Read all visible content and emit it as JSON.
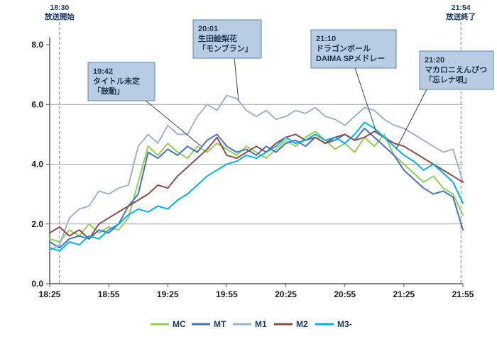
{
  "chart_data": {
    "type": "line",
    "x_axis_start": "18:25",
    "x_axis_end": "21:55",
    "x_ticks": [
      "18:25",
      "18:55",
      "19:25",
      "19:55",
      "20:25",
      "20:55",
      "21:25",
      "21:55"
    ],
    "x_tick_interval_minutes": 30,
    "y_ticks": [
      "0.0",
      "2.0",
      "4.0",
      "6.0",
      "8.0"
    ],
    "ylim": [
      0,
      8
    ],
    "grid_values": [
      2,
      4,
      6
    ],
    "grid": true,
    "legend_position": "bottom",
    "sample_interval_minutes": 5,
    "markers": [
      {
        "time": "18:30",
        "label": "放送開始"
      },
      {
        "time": "21:54",
        "label": "放送終了"
      }
    ],
    "annotations": [
      {
        "time": "19:42",
        "lines": [
          "19:42",
          "タイトル未定",
          "「鼓動」"
        ]
      },
      {
        "time": "20:01",
        "lines": [
          "20:01",
          "生田絵梨花",
          "「モンブラン」"
        ]
      },
      {
        "time": "21:10",
        "lines": [
          "21:10",
          "ドラゴンボール",
          "DAIMA SPメドレー"
        ]
      },
      {
        "time": "21:20",
        "lines": [
          "21:20",
          "マカロニえんぴつ",
          "「忘レナ唄」"
        ]
      }
    ],
    "series": [
      {
        "name": "MC",
        "color": "#92d050",
        "values": [
          1.5,
          1.4,
          1.8,
          1.6,
          2.0,
          1.7,
          1.9,
          1.8,
          2.2,
          3.4,
          4.6,
          4.3,
          4.7,
          4.4,
          4.2,
          4.6,
          4.4,
          4.7,
          4.5,
          4.3,
          4.6,
          4.4,
          4.2,
          4.5,
          4.8,
          4.6,
          4.9,
          5.1,
          4.8,
          4.5,
          4.7,
          4.4,
          4.9,
          4.6,
          5.0,
          4.3,
          4.0,
          3.7,
          3.4,
          3.6,
          3.2,
          3.0,
          2.3
        ]
      },
      {
        "name": "MT",
        "color": "#4472c4",
        "values": [
          1.4,
          1.2,
          1.5,
          1.6,
          1.5,
          1.8,
          1.7,
          2.0,
          2.6,
          3.0,
          4.4,
          4.2,
          4.5,
          4.3,
          4.6,
          4.4,
          4.8,
          5.0,
          4.6,
          4.4,
          4.5,
          4.3,
          4.6,
          4.4,
          4.7,
          4.8,
          4.6,
          4.9,
          4.7,
          4.8,
          5.0,
          4.8,
          5.2,
          4.9,
          4.6,
          4.3,
          3.8,
          3.5,
          3.2,
          3.0,
          3.1,
          2.9,
          1.8
        ]
      },
      {
        "name": "M1",
        "color": "#9bb3d4",
        "values": [
          1.1,
          1.3,
          2.2,
          2.5,
          2.6,
          3.1,
          3.0,
          3.2,
          3.3,
          4.6,
          5.0,
          4.7,
          5.3,
          5.0,
          5.0,
          5.6,
          6.0,
          5.8,
          6.3,
          6.2,
          5.8,
          5.6,
          5.8,
          5.5,
          5.6,
          5.8,
          5.7,
          5.9,
          5.6,
          5.5,
          5.3,
          5.6,
          5.9,
          5.8,
          5.5,
          5.3,
          5.2,
          5.0,
          4.8,
          4.6,
          4.4,
          4.5,
          3.4
        ]
      },
      {
        "name": "M2",
        "color": "#8e4d49",
        "values": [
          1.7,
          1.9,
          1.6,
          1.8,
          1.5,
          2.0,
          2.2,
          2.4,
          2.6,
          2.8,
          3.0,
          3.3,
          3.2,
          3.6,
          3.9,
          4.2,
          4.5,
          4.9,
          4.3,
          4.2,
          4.4,
          4.6,
          4.4,
          4.7,
          4.9,
          5.0,
          4.8,
          4.9,
          4.7,
          4.9,
          5.0,
          4.8,
          4.9,
          5.1,
          4.9,
          4.7,
          4.6,
          4.4,
          4.2,
          4.0,
          3.8,
          3.6,
          3.4
        ]
      },
      {
        "name": "M3-",
        "color": "#00b0f0",
        "values": [
          1.2,
          1.1,
          1.4,
          1.3,
          1.6,
          1.5,
          1.8,
          2.0,
          2.3,
          2.5,
          2.4,
          2.6,
          2.5,
          2.8,
          3.0,
          3.3,
          3.6,
          3.8,
          4.0,
          4.1,
          4.3,
          4.2,
          4.4,
          4.6,
          4.9,
          4.7,
          4.8,
          5.0,
          4.8,
          4.9,
          4.7,
          5.0,
          5.4,
          5.2,
          4.9,
          4.6,
          4.3,
          4.1,
          3.8,
          4.0,
          3.7,
          3.4,
          2.7
        ]
      }
    ],
    "colors": {
      "grid": "#a6a6a6",
      "axis": "#595959",
      "marker_line": "#808080",
      "leader_line": "#404040",
      "annotation_fill": "#b8cce4",
      "annotation_border": "#5b84b1",
      "annotation_text": "#1f3550",
      "tick_text": "#1a1a1a"
    }
  }
}
